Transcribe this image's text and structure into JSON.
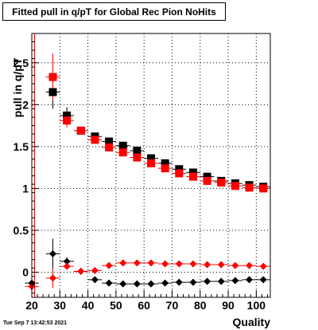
{
  "title": "Fitted pull in q/pT for Global Rec Pion NoHits",
  "timestamp": "Tue Sep  7 13:42:53 2021",
  "chart_data": {
    "type": "scatter",
    "title": "Fitted pull in q/pT for Global Rec Pion NoHits",
    "xlabel": "Quality",
    "ylabel": "pull in q/pT",
    "xlim": [
      20,
      105
    ],
    "ylim": [
      -0.3,
      2.85
    ],
    "grid": true,
    "xticks": [
      20,
      30,
      40,
      50,
      60,
      70,
      80,
      90,
      100
    ],
    "yticks": [
      0,
      0.5,
      1,
      1.5,
      2,
      2.5
    ],
    "ytick_labels": [
      "0",
      "0.5",
      "1",
      "1.5",
      "2",
      "2.5"
    ],
    "x": [
      20,
      27.5,
      32.5,
      37.5,
      42.5,
      47.5,
      52.5,
      57.5,
      62.5,
      67.5,
      72.5,
      77.5,
      82.5,
      87.5,
      92.5,
      97.5,
      102.5
    ],
    "series": [
      {
        "marker": "square",
        "color": "#000000",
        "values": [
          null,
          2.15,
          1.87,
          1.69,
          1.62,
          1.56,
          1.51,
          1.45,
          1.36,
          1.3,
          1.23,
          1.19,
          1.14,
          1.09,
          1.06,
          1.04,
          1.02
        ],
        "errors": [
          null,
          0.2,
          0.1,
          0.03,
          0.03,
          0.03,
          0.03,
          0.03,
          0.03,
          0.03,
          0.02,
          0.02,
          0.02,
          0.02,
          0.02,
          0.02,
          0.02
        ]
      },
      {
        "marker": "square",
        "color": "#ff0000",
        "values": [
          null,
          2.33,
          1.81,
          1.69,
          1.58,
          1.49,
          1.43,
          1.37,
          1.3,
          1.24,
          1.18,
          1.14,
          1.09,
          1.07,
          1.03,
          1.01,
          1.0
        ],
        "errors": [
          null,
          0.28,
          0.08,
          0.03,
          0.03,
          0.03,
          0.03,
          0.03,
          0.03,
          0.03,
          0.02,
          0.02,
          0.02,
          0.02,
          0.02,
          0.02,
          0.02
        ]
      },
      {
        "marker": "diamond",
        "color": "#000000",
        "values": [
          -0.13,
          0.22,
          0.13,
          0.01,
          -0.09,
          -0.13,
          -0.14,
          -0.14,
          -0.14,
          -0.13,
          -0.12,
          -0.12,
          -0.11,
          -0.11,
          -0.1,
          -0.09,
          -0.09
        ],
        "errors": [
          0.05,
          0.18,
          0.05,
          0.02,
          0.02,
          0.02,
          0.02,
          0.02,
          0.02,
          0.02,
          0.02,
          0.02,
          0.02,
          0.02,
          0.02,
          0.02,
          0.02
        ]
      },
      {
        "marker": "diamond",
        "color": "#ff0000",
        "values": [
          -0.17,
          -0.07,
          0.07,
          0.01,
          0.02,
          0.08,
          0.11,
          0.11,
          0.11,
          0.1,
          0.1,
          0.1,
          0.09,
          0.09,
          0.08,
          0.08,
          0.07
        ],
        "errors": [
          0.1,
          0.12,
          0.04,
          0.02,
          0.02,
          0.02,
          0.02,
          0.02,
          0.02,
          0.02,
          0.02,
          0.02,
          0.02,
          0.02,
          0.02,
          0.02,
          0.02
        ]
      }
    ]
  }
}
